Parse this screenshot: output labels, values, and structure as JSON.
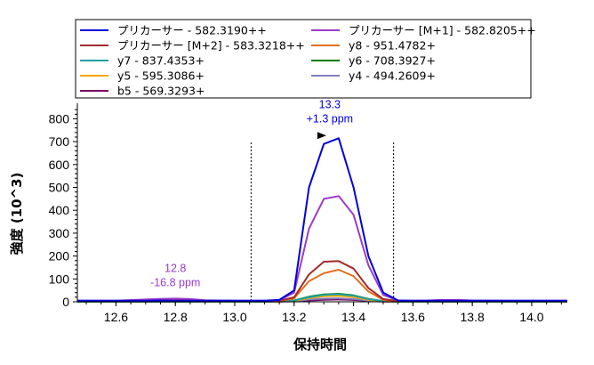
{
  "chart_data": {
    "type": "line",
    "title": "",
    "xlabel": "保持時間",
    "ylabel": "強度 (10^3)",
    "xlim": [
      12.47,
      14.12
    ],
    "ylim": [
      0,
      860
    ],
    "x_ticks": [
      "12.6",
      "12.8",
      "13.0",
      "13.2",
      "13.4",
      "13.6",
      "13.8",
      "14.0"
    ],
    "y_ticks": [
      "0",
      "100",
      "200",
      "300",
      "400",
      "500",
      "600",
      "700",
      "800"
    ],
    "boundaries": [
      13.055,
      13.535
    ],
    "legend": {
      "position": "top",
      "columns": 2
    },
    "x": [
      12.47,
      12.6,
      12.7,
      12.75,
      12.8,
      12.85,
      12.9,
      13.0,
      13.1,
      13.15,
      13.2,
      13.25,
      13.3,
      13.35,
      13.4,
      13.45,
      13.5,
      13.55,
      13.6,
      13.65,
      13.7,
      13.75,
      13.8,
      13.9,
      14.0,
      14.12
    ],
    "series": [
      {
        "name": "プリカーサー - 582.3190++",
        "color": "#0000dd",
        "values": [
          5,
          5,
          5,
          6,
          5,
          5,
          5,
          5,
          5,
          8,
          50,
          500,
          690,
          715,
          500,
          200,
          40,
          6,
          5,
          5,
          5,
          5,
          5,
          5,
          5,
          5
        ]
      },
      {
        "name": "プリカーサー [M+1] - 582.8205++",
        "color": "#9b3bc8",
        "values": [
          5,
          5,
          10,
          13,
          14,
          12,
          7,
          5,
          5,
          7,
          40,
          320,
          450,
          462,
          380,
          160,
          30,
          6,
          5,
          6,
          8,
          8,
          6,
          5,
          5,
          5
        ]
      },
      {
        "name": "プリカーサー [M+2] - 583.3218++",
        "color": "#a52a2a",
        "values": [
          3,
          3,
          6,
          8,
          9,
          8,
          5,
          3,
          3,
          4,
          20,
          120,
          175,
          178,
          145,
          60,
          12,
          3,
          3,
          3,
          4,
          4,
          3,
          3,
          3,
          3
        ]
      },
      {
        "name": "y8 - 951.4782+",
        "color": "#e07020",
        "values": [
          2,
          2,
          3,
          3,
          4,
          3,
          2,
          2,
          2,
          3,
          15,
          90,
          125,
          140,
          112,
          45,
          8,
          2,
          2,
          2,
          2,
          2,
          2,
          2,
          2,
          2
        ]
      },
      {
        "name": "y7 - 837.4353+",
        "color": "#20a0a0",
        "values": [
          1,
          1,
          1,
          1,
          1,
          1,
          1,
          1,
          1,
          2,
          5,
          20,
          30,
          33,
          26,
          12,
          3,
          1,
          1,
          1,
          1,
          1,
          1,
          1,
          1,
          1
        ]
      },
      {
        "name": "y6 - 708.3927+",
        "color": "#007a00",
        "values": [
          1,
          1,
          1,
          1,
          1,
          1,
          1,
          1,
          1,
          2,
          6,
          22,
          32,
          35,
          28,
          13,
          3,
          1,
          1,
          1,
          1,
          1,
          1,
          1,
          1,
          1
        ]
      },
      {
        "name": "y5 - 595.3086+",
        "color": "#ffa500",
        "values": [
          1,
          1,
          1,
          1,
          1,
          1,
          1,
          1,
          1,
          1,
          4,
          16,
          24,
          26,
          21,
          9,
          2,
          1,
          1,
          1,
          1,
          1,
          1,
          1,
          1,
          1
        ]
      },
      {
        "name": "y4 - 494.2609+",
        "color": "#8080c0",
        "values": [
          1,
          1,
          1,
          1,
          1,
          1,
          1,
          1,
          1,
          1,
          3,
          10,
          14,
          15,
          12,
          6,
          2,
          1,
          1,
          1,
          1,
          1,
          1,
          1,
          1,
          1
        ]
      },
      {
        "name": "b5 - 569.3293+",
        "color": "#7a0060",
        "values": [
          1,
          1,
          1,
          1,
          1,
          1,
          1,
          1,
          1,
          1,
          2,
          6,
          9,
          10,
          8,
          4,
          1,
          1,
          1,
          1,
          1,
          1,
          1,
          1,
          1,
          1
        ]
      }
    ],
    "annotations": [
      {
        "lines": [
          "13.3",
          "+1.3 ppm"
        ],
        "x": 13.32,
        "y": 715,
        "color": "#0000dd",
        "marker": true
      },
      {
        "lines": [
          "12.8",
          "-16.8 ppm"
        ],
        "x": 12.8,
        "y": 14,
        "color": "#9b3bc8",
        "marker": false
      }
    ]
  }
}
